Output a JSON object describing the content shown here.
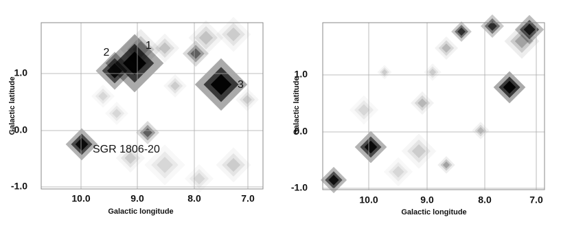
{
  "panels": [
    {
      "x_label": "Galactic longitude",
      "y_label": "Galactic latitude",
      "x_tick_labels": [
        "10.0",
        "9.0",
        "8.0",
        "7.0"
      ],
      "y_tick_labels": [
        "1.0",
        "0.0",
        "-1.0"
      ],
      "annotations": [
        "1",
        "2",
        "3",
        "SGR 1806-20"
      ]
    },
    {
      "x_label": "Galactic longitude",
      "y_label": "Galactic latitude",
      "x_tick_labels": [
        "10.0",
        "9.0",
        "8.0",
        "7.0"
      ],
      "y_tick_labels": [
        "1.0",
        "0.0",
        "-1.0"
      ]
    }
  ]
}
